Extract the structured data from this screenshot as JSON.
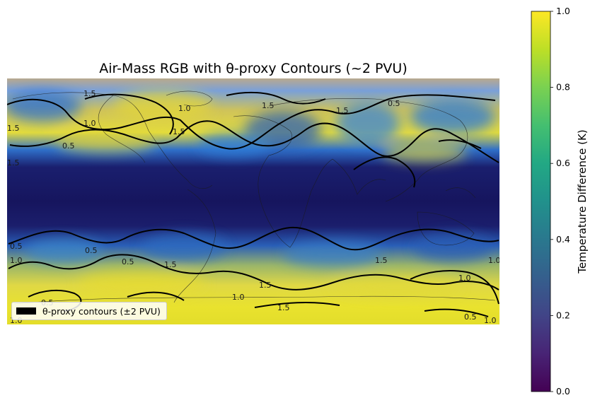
{
  "chart_data": {
    "type": "heatmap",
    "title": "Air-Mass RGB with θ-proxy Contours (~2 PVU)",
    "colorbar": {
      "label": "Temperature Difference (K)",
      "range": [
        0.0,
        1.0
      ],
      "ticks": [
        "0.0",
        "0.2",
        "0.4",
        "0.6",
        "0.8",
        "1.0"
      ],
      "colormap": "viridis"
    },
    "legend": {
      "entries": [
        {
          "label": "θ-proxy contours (±2 PVU)",
          "color": "#000000"
        }
      ],
      "placement": "lower-left"
    },
    "contour_levels": [
      0.5,
      1.0,
      1.5
    ],
    "contour_labels": [
      "1.5",
      "1.5",
      "1.5",
      "1.5",
      "1.0",
      "1.5",
      "0.5",
      "1.5",
      "0.5",
      "0.5",
      "0.5",
      "0.5",
      "1.0",
      "0.5",
      "1.5",
      "1.5",
      "1.0",
      "1.5",
      "1.0",
      "1.5",
      "0.5",
      "1.0",
      "1.0",
      "1.0",
      "1.0"
    ],
    "map": "global (plate carrée) with coastlines",
    "grid": false
  }
}
